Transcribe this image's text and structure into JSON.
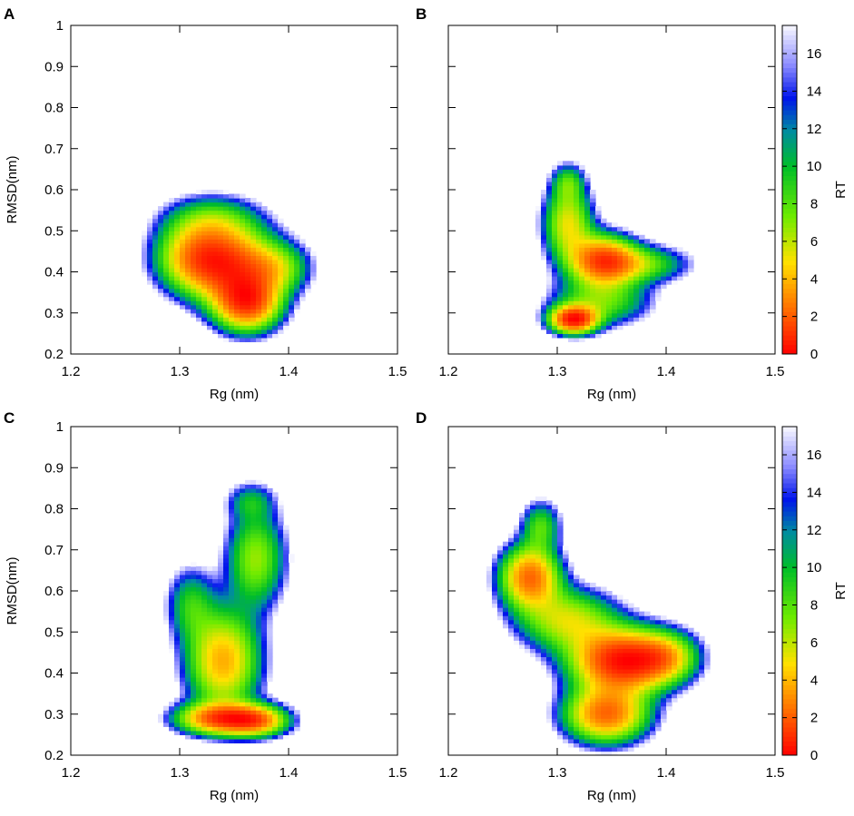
{
  "chart_data": [
    {
      "panel": "A",
      "type": "heatmap",
      "title": "",
      "xlabel": "Rg (nm)",
      "ylabel": "RMSD(nm)",
      "xlim": [
        1.2,
        1.5
      ],
      "ylim": [
        0.2,
        1.0
      ],
      "xticks": [
        "1.2",
        "1.3",
        "1.4",
        "1.5"
      ],
      "yticks": [
        "0.2",
        "0.3",
        "0.4",
        "0.5",
        "0.6",
        "0.7",
        "0.8",
        "0.9",
        "1"
      ],
      "show_y_tick_labels": true,
      "colorbar": null,
      "density": {
        "blobs": [
          {
            "x": 1.362,
            "y": 0.325,
            "sx": 0.02,
            "sy": 0.045,
            "w": 1.0
          },
          {
            "x": 1.345,
            "y": 0.42,
            "sx": 0.03,
            "sy": 0.06,
            "w": 0.85
          },
          {
            "x": 1.315,
            "y": 0.44,
            "sx": 0.025,
            "sy": 0.055,
            "w": 0.55
          },
          {
            "x": 1.39,
            "y": 0.41,
            "sx": 0.02,
            "sy": 0.04,
            "w": 0.35
          },
          {
            "x": 1.33,
            "y": 0.53,
            "sx": 0.03,
            "sy": 0.04,
            "w": 0.3
          }
        ],
        "cutoff": 0.07
      }
    },
    {
      "panel": "B",
      "type": "heatmap",
      "title": "",
      "xlabel": "Rg (nm)",
      "ylabel": "",
      "xlim": [
        1.2,
        1.5
      ],
      "ylim": [
        0.2,
        1.0
      ],
      "xticks": [
        "1.2",
        "1.3",
        "1.4",
        "1.5"
      ],
      "yticks": [
        "0.2",
        "0.3",
        "0.4",
        "0.5",
        "0.6",
        "0.7",
        "0.8",
        "0.9",
        "1"
      ],
      "show_y_tick_labels": false,
      "colorbar": {
        "label": "RT",
        "min": 0,
        "max": 17.5,
        "ticks": [
          "0",
          "2",
          "4",
          "6",
          "8",
          "10",
          "12",
          "14",
          "16"
        ]
      },
      "density": {
        "blobs": [
          {
            "x": 1.315,
            "y": 0.285,
            "sx": 0.014,
            "sy": 0.022,
            "w": 1.0
          },
          {
            "x": 1.342,
            "y": 0.43,
            "sx": 0.02,
            "sy": 0.04,
            "w": 0.78
          },
          {
            "x": 1.31,
            "y": 0.52,
            "sx": 0.015,
            "sy": 0.06,
            "w": 0.5
          },
          {
            "x": 1.375,
            "y": 0.42,
            "sx": 0.03,
            "sy": 0.03,
            "w": 0.35
          },
          {
            "x": 1.34,
            "y": 0.33,
            "sx": 0.03,
            "sy": 0.04,
            "w": 0.35
          },
          {
            "x": 1.31,
            "y": 0.62,
            "sx": 0.01,
            "sy": 0.03,
            "w": 0.25
          }
        ],
        "cutoff": 0.07
      }
    },
    {
      "panel": "C",
      "type": "heatmap",
      "title": "",
      "xlabel": "Rg (nm)",
      "ylabel": "RMSD(nm)",
      "xlim": [
        1.2,
        1.5
      ],
      "ylim": [
        0.2,
        1.0
      ],
      "xticks": [
        "1.2",
        "1.3",
        "1.4",
        "1.5"
      ],
      "yticks": [
        "0.2",
        "0.3",
        "0.4",
        "0.5",
        "0.6",
        "0.7",
        "0.8",
        "0.9",
        "1"
      ],
      "show_y_tick_labels": true,
      "colorbar": null,
      "density": {
        "blobs": [
          {
            "x": 1.335,
            "y": 0.29,
            "sx": 0.025,
            "sy": 0.025,
            "w": 1.0
          },
          {
            "x": 1.37,
            "y": 0.285,
            "sx": 0.02,
            "sy": 0.025,
            "w": 0.9
          },
          {
            "x": 1.34,
            "y": 0.43,
            "sx": 0.022,
            "sy": 0.08,
            "w": 0.85
          },
          {
            "x": 1.37,
            "y": 0.68,
            "sx": 0.018,
            "sy": 0.08,
            "w": 0.55
          },
          {
            "x": 1.31,
            "y": 0.57,
            "sx": 0.015,
            "sy": 0.06,
            "w": 0.35
          },
          {
            "x": 1.365,
            "y": 0.82,
            "sx": 0.015,
            "sy": 0.03,
            "w": 0.25
          }
        ],
        "cutoff": 0.07
      }
    },
    {
      "panel": "D",
      "type": "heatmap",
      "title": "",
      "xlabel": "Rg (nm)",
      "ylabel": "",
      "xlim": [
        1.2,
        1.5
      ],
      "ylim": [
        0.2,
        1.0
      ],
      "xticks": [
        "1.2",
        "1.3",
        "1.4",
        "1.5"
      ],
      "yticks": [
        "0.2",
        "0.3",
        "0.4",
        "0.5",
        "0.6",
        "0.7",
        "0.8",
        "0.9",
        "1"
      ],
      "show_y_tick_labels": false,
      "colorbar": {
        "label": "RT",
        "min": 0,
        "max": 17.5,
        "ticks": [
          "0",
          "2",
          "4",
          "6",
          "8",
          "10",
          "12",
          "14",
          "16"
        ]
      },
      "density": {
        "blobs": [
          {
            "x": 1.36,
            "y": 0.43,
            "sx": 0.03,
            "sy": 0.05,
            "w": 1.0
          },
          {
            "x": 1.345,
            "y": 0.3,
            "sx": 0.025,
            "sy": 0.045,
            "w": 0.75
          },
          {
            "x": 1.275,
            "y": 0.635,
            "sx": 0.018,
            "sy": 0.05,
            "w": 0.75
          },
          {
            "x": 1.31,
            "y": 0.53,
            "sx": 0.03,
            "sy": 0.05,
            "w": 0.45
          },
          {
            "x": 1.4,
            "y": 0.44,
            "sx": 0.02,
            "sy": 0.04,
            "w": 0.4
          },
          {
            "x": 1.285,
            "y": 0.76,
            "sx": 0.012,
            "sy": 0.04,
            "w": 0.3
          }
        ],
        "cutoff": 0.07
      }
    }
  ]
}
